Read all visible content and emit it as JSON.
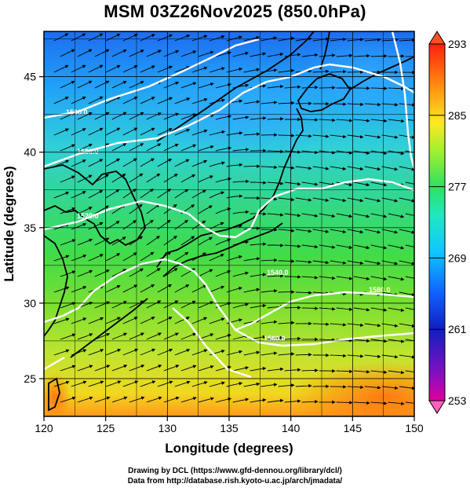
{
  "title": "MSM 03Z26Nov2025 (850.0hPa)",
  "x_axis": {
    "label": "Longitude (degrees)",
    "ticks": [
      "120",
      "125",
      "130",
      "135",
      "140",
      "145",
      "150"
    ]
  },
  "y_axis": {
    "label": "Latitude  (degrees)",
    "ticks": [
      "25",
      "30",
      "35",
      "40",
      "45"
    ]
  },
  "colorbar": {
    "ticks": [
      "293",
      "285",
      "277",
      "269",
      "261",
      "253"
    ],
    "colors": [
      "#e0007f",
      "#8a1ab5",
      "#2030d0",
      "#1070ff",
      "#10c8ff",
      "#30e8b0",
      "#40e840",
      "#c8f030",
      "#ffe020",
      "#ff9010",
      "#ff3010"
    ]
  },
  "contour_labels": [
    "1500.0",
    "1500.0",
    "1520.0",
    "1540.0",
    "1560.0",
    "1580.0"
  ],
  "credits": {
    "line1": "Drawing by DCL (https://www.gfd-dennou.org/library/dcl/)",
    "line2": "Data from http://database.rish.kyoto-u.ac.jp/arch/jmadata/"
  },
  "map": {
    "lon_range": [
      120,
      150
    ],
    "lat_range": [
      22.5,
      48
    ],
    "field": "temperature (K) with streamlines and geopotential height contours (white)"
  }
}
